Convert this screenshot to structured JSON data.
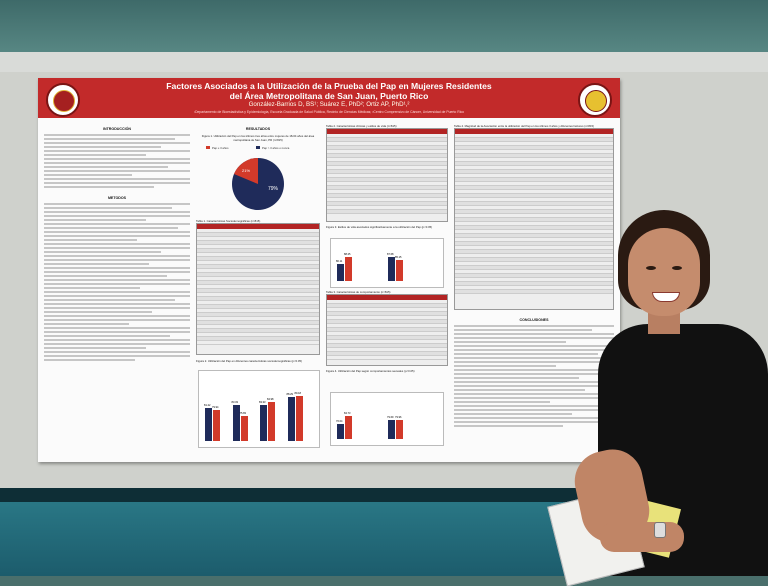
{
  "poster": {
    "title_line1": "Factores Asociados a la Utilización de la Prueba del Pap en Mujeres Residentes",
    "title_line2": "del Área Metropolitana de San Juan, Puerto Rico",
    "authors": "González-Barrios D, BS¹; Suárez E, PhD²; Ortiz AP, PhD¹,²",
    "affiliation": "¹Departamento de Bioestadística y Epidemiología, Escuela Graduada de Salud Pública, Recinto de Ciencias Médicas; ²Centro Comprensivo de Cáncer, Universidad de Puerto Rico",
    "sections": {
      "intro": "INTRODUCCIÓN",
      "methods": "METODOS",
      "results": "RESULTADOS",
      "conclusions": "CONCLUSIONES"
    },
    "figure1_caption": "Figura 1. Utilización del Pap en los últimos tres años entre mujeres de 18-64 años del área metropolitana de San Juan, PR (n=815)",
    "pie_labels": [
      "Pap ≤ 3 años",
      "Pap > 3 años o nunca"
    ],
    "pie_values": [
      "21%",
      "79%"
    ],
    "table1_title": "Tabla 1. Características Sociodemográficas (n=815)",
    "table2_title": "Tabla 2. Características clínicas y estilos de vida (n=815)",
    "table3_title": "Tabla 3. Características de comportamiento (n=815)",
    "table4_title": "Tabla 4. Magnitud de la Asociación entre la utilización del Pap en los últimos 3 años y diferentes factores (n=815)",
    "fig2_caption": "Figura 2. Utilización del Pap en diferentes características sociodemográficas (p<0.05)",
    "fig3_caption": "Figura 3. Estilos de vida asociados significativamente a la utilización del Pap (p<0.05)",
    "fig4_caption": "Figura 4. Utilización del Pap según comportamientos sexuales (p<0.05)",
    "fig2_values": [
      "81.22",
      "79.94",
      "83.33",
      "75.83",
      "83.33",
      "84.98",
      "88.29",
      "89.18"
    ],
    "fig3_values": [
      "80.11",
      "88.25",
      "87.68",
      "85.15"
    ],
    "fig4_values": [
      "76.04",
      "84.73",
      "79.69",
      "79.96"
    ],
    "legend_no": "No",
    "legend_si": "Si"
  },
  "colors": {
    "banner": "#c22a2a",
    "series_a": "#1f2b5a",
    "series_b": "#d23a2a"
  }
}
